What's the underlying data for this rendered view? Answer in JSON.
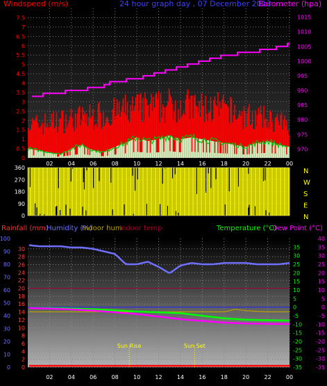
{
  "colors": {
    "background": "#000000",
    "plot_bg_top": "#000000",
    "plot_bg_bottom": "#a8a8a8",
    "wind_bar": "#ff0000",
    "gust_bar": "#ff0000",
    "wind_avg": "#00c000",
    "wind_fill": "#c8ffc8",
    "barometer": "#ff00ff",
    "direction": "#ffff00",
    "rainfall": "#ff0000",
    "humidity": "#7070ff",
    "indoor_hum": "#b8a000",
    "indoor_temp": "#a00030",
    "temperature": "#00ff00",
    "dew_point": "#ff00ff",
    "sun_marker": "#ffff00"
  },
  "chart_data": [
    {
      "id": "wind-barometer",
      "type": "bar",
      "title": "24 hour graph day , 07 December 2013",
      "ylabel_left": "Windspeed (m/s)",
      "ylabel_right": "Barometer (hpa)",
      "yticks_left": [
        "0",
        "0.5",
        "1",
        "1.5",
        "2",
        "2.5",
        "3",
        "3.5",
        "4",
        "4.5",
        "5",
        "5.5",
        "6",
        "6.5",
        "7",
        "7.5"
      ],
      "ylim_left": [
        0,
        8
      ],
      "yticks_right": [
        "970",
        "975",
        "980",
        "985",
        "990",
        "995",
        "1000",
        "1005",
        "1010",
        "1015"
      ],
      "ylim_right": [
        967,
        1018
      ],
      "xticks": [
        "02",
        "04",
        "06",
        "08",
        "10",
        "12",
        "14",
        "16",
        "18",
        "20",
        "22",
        "00"
      ],
      "xlim": [
        0,
        24
      ],
      "series": [
        {
          "name": "Windspeed",
          "kind": "bars",
          "x": [
            0,
            1,
            2,
            3,
            4,
            5,
            6,
            7,
            8,
            9,
            10,
            11,
            12,
            13,
            14,
            15,
            16,
            17,
            18,
            19,
            20,
            21,
            22,
            23,
            24
          ],
          "values": [
            1.5,
            1.6,
            1.6,
            1.5,
            1.4,
            1.6,
            1.7,
            1.6,
            1.6,
            1.8,
            1.8,
            1.7,
            1.7,
            1.8,
            1.9,
            1.8,
            1.7,
            1.8,
            1.9,
            1.7,
            1.6,
            1.6,
            1.5,
            1.4,
            1.4
          ]
        },
        {
          "name": "Gust",
          "kind": "bars",
          "x": [
            0,
            1,
            2,
            3,
            4,
            5,
            6,
            7,
            8,
            9,
            10,
            11,
            12,
            13,
            14,
            15,
            16,
            17,
            18,
            19,
            20,
            21,
            22,
            23,
            24
          ],
          "values": [
            2.0,
            2.1,
            2.2,
            2.3,
            2.4,
            2.5,
            2.6,
            2.7,
            2.8,
            3.0,
            3.1,
            3.1,
            3.2,
            3.3,
            3.3,
            3.2,
            3.1,
            3.1,
            3.0,
            2.8,
            2.6,
            2.5,
            2.4,
            2.2,
            2.0
          ]
        },
        {
          "name": "Average",
          "kind": "line",
          "x": [
            0,
            1,
            2,
            3,
            4,
            5,
            6,
            7,
            8,
            9,
            10,
            11,
            12,
            13,
            14,
            15,
            16,
            17,
            18,
            19,
            20,
            21,
            22,
            23,
            24
          ],
          "values": [
            0.5,
            0.4,
            0.3,
            0.2,
            0.5,
            0.7,
            0.4,
            0.3,
            0.6,
            0.8,
            1.1,
            0.9,
            1.0,
            1.2,
            1.0,
            1.1,
            1.0,
            0.9,
            0.8,
            0.7,
            0.6,
            0.8,
            0.9,
            0.7,
            0.6
          ]
        },
        {
          "name": "Barometer",
          "kind": "line",
          "x": [
            0,
            2,
            4,
            6,
            8,
            10,
            12,
            14,
            16,
            18,
            20,
            22,
            24
          ],
          "values": [
            988,
            989,
            990,
            991,
            993,
            994,
            996,
            998,
            1000,
            1002,
            1003,
            1004,
            1006
          ]
        }
      ]
    },
    {
      "id": "wind-direction",
      "type": "bar",
      "ylabel_right": [
        "N",
        "W",
        "S",
        "E",
        "N"
      ],
      "yticks_left": [
        "0",
        "90",
        "180",
        "270",
        "360"
      ],
      "ylim": [
        0,
        360
      ],
      "xlim": [
        0,
        24
      ],
      "direction_range_deg": [
        0,
        360
      ]
    },
    {
      "id": "temp-humidity",
      "type": "line",
      "legend_top": [
        "Rainfall (mm)",
        "Humidity (%)",
        "Indoor hum",
        "Indoor temp"
      ],
      "legend_right": [
        "Temperature (°C)",
        "Dew Point (°C)"
      ],
      "axis_humidity": [
        "0",
        "10",
        "20",
        "30",
        "40",
        "50",
        "60",
        "70",
        "80",
        "90",
        "100"
      ],
      "axis_rain": [
        "0",
        "2",
        "4",
        "6",
        "8",
        "10",
        "12",
        "14",
        "16",
        "18",
        "20",
        "22",
        "24",
        "26",
        "28",
        "30"
      ],
      "axis_temp_right": [
        "-35",
        "-30",
        "-25",
        "-20",
        "-15",
        "-10",
        "-5",
        "0",
        "5",
        "10",
        "15",
        "20",
        "25",
        "30",
        "35"
      ],
      "axis_temp_far_right": [
        "-35",
        "-30",
        "-25",
        "-20",
        "-15",
        "-10",
        "-5",
        "0",
        "5",
        "10",
        "15",
        "20",
        "25",
        "30",
        "35",
        "40"
      ],
      "humidity_lim": [
        0,
        100
      ],
      "temp_lim": [
        -35,
        40
      ],
      "xticks": [
        "02",
        "04",
        "06",
        "08",
        "10",
        "12",
        "14",
        "16",
        "18",
        "20",
        "22",
        "00"
      ],
      "xlim": [
        0,
        24
      ],
      "annotations": [
        {
          "label": "Sun Rise",
          "x": 9.3
        },
        {
          "label": "Sun Set",
          "x": 15.3
        }
      ],
      "series": [
        {
          "name": "Humidity",
          "x": [
            0,
            1,
            2,
            3,
            4,
            5,
            6,
            7,
            8,
            9,
            10,
            11,
            12,
            13,
            14,
            15,
            16,
            17,
            18,
            19,
            20,
            21,
            22,
            23,
            24
          ],
          "values": [
            95,
            94,
            94,
            94,
            93,
            93,
            92,
            90,
            88,
            80,
            80,
            82,
            78,
            73,
            79,
            81,
            80,
            80,
            81,
            81,
            81,
            80,
            80,
            80,
            81
          ]
        },
        {
          "name": "Indoor hum",
          "x": [
            0,
            2,
            4,
            6,
            8,
            10,
            12,
            14,
            16,
            18,
            19,
            20,
            22,
            24
          ],
          "values": [
            43,
            43,
            43,
            43,
            43,
            43,
            43,
            43,
            43,
            43,
            45,
            44,
            43,
            43
          ]
        },
        {
          "name": "Indoor temp",
          "x": [
            0,
            2,
            4,
            6,
            8,
            10,
            12,
            14,
            16,
            18,
            20,
            22,
            24
          ],
          "values": [
            11,
            11,
            11,
            11,
            11,
            11,
            11,
            11,
            11,
            11,
            11,
            11,
            11
          ]
        },
        {
          "name": "Temperature",
          "x": [
            0,
            2,
            4,
            6,
            8,
            10,
            12,
            14,
            16,
            18,
            20,
            22,
            24
          ],
          "values": [
            -0.5,
            -0.5,
            -0.8,
            -1.2,
            -1.8,
            -2.5,
            -3.0,
            -3.5,
            -5.0,
            -6.5,
            -7.3,
            -7.6,
            -7.8
          ]
        },
        {
          "name": "Dew Point",
          "x": [
            0,
            2,
            4,
            6,
            8,
            10,
            12,
            14,
            16,
            18,
            20,
            22,
            24
          ],
          "values": [
            -0.5,
            -0.8,
            -1.3,
            -2.0,
            -3.0,
            -4.0,
            -5.5,
            -7.0,
            -8.0,
            -9.0,
            -9.5,
            -9.7,
            -9.8
          ]
        },
        {
          "name": "Rainfall",
          "x": [
            0,
            24
          ],
          "values": [
            0,
            0
          ]
        }
      ]
    }
  ]
}
